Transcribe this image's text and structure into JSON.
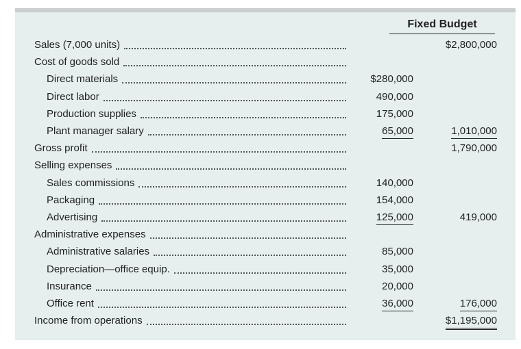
{
  "statement": {
    "column_header": "Fixed Budget",
    "rows": [
      {
        "label": "Sales (7,000 units)",
        "col2": "$2,800,000"
      },
      {
        "label": "Cost of goods sold"
      },
      {
        "label": "Direct materials",
        "indent": true,
        "col1": "$280,000"
      },
      {
        "label": "Direct labor",
        "indent": true,
        "col1": "490,000"
      },
      {
        "label": "Production supplies",
        "indent": true,
        "col1": "175,000"
      },
      {
        "label": "Plant manager salary",
        "indent": true,
        "col1": "65,000",
        "col1_underline": true,
        "col2": "1,010,000",
        "col2_underline": true
      },
      {
        "label": "Gross profit",
        "col2": "1,790,000"
      },
      {
        "label": "Selling expenses"
      },
      {
        "label": "Sales commissions",
        "indent": true,
        "col1": "140,000"
      },
      {
        "label": "Packaging",
        "indent": true,
        "col1": "154,000"
      },
      {
        "label": "Advertising",
        "indent": true,
        "col1": "125,000",
        "col1_underline": true,
        "col2": "419,000"
      },
      {
        "label": "Administrative expenses"
      },
      {
        "label": "Administrative salaries",
        "indent": true,
        "col1": "85,000"
      },
      {
        "label": "Depreciation—office equip.",
        "indent": true,
        "col1": "35,000"
      },
      {
        "label": "Insurance",
        "indent": true,
        "col1": "20,000"
      },
      {
        "label": "Office rent",
        "indent": true,
        "col1": "36,000",
        "col1_underline": true,
        "col2": "176,000",
        "col2_underline": true
      },
      {
        "label": "Income from operations",
        "col2": "$1,195,000",
        "col2_double_underline": true
      }
    ]
  }
}
